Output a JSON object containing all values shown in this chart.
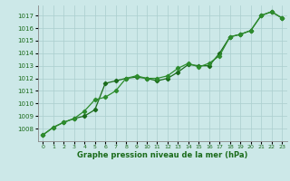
{
  "x_labels": [
    0,
    1,
    2,
    3,
    4,
    5,
    6,
    7,
    8,
    9,
    10,
    11,
    12,
    13,
    14,
    15,
    16,
    17,
    18,
    19,
    20,
    21,
    22,
    23
  ],
  "series1": [
    1007.5,
    1008.1,
    1008.5,
    1008.8,
    1009.0,
    1009.5,
    1011.6,
    1011.8,
    1012.0,
    1012.1,
    1012.0,
    1011.8,
    1012.0,
    1012.5,
    1013.1,
    1013.0,
    1013.0,
    1014.0,
    1015.3,
    1015.5,
    1015.8,
    1017.0,
    1017.3,
    1016.8
  ],
  "series2": [
    1007.5,
    1008.1,
    1008.5,
    1008.8,
    1009.4,
    1010.3,
    1010.5,
    1011.0,
    1012.0,
    1012.2,
    1012.0,
    1012.0,
    1012.2,
    1012.8,
    1013.2,
    1012.9,
    1013.2,
    1013.8,
    1015.3,
    1015.5,
    1015.8,
    1017.0,
    1017.3,
    1016.8
  ],
  "ylim": [
    1007.0,
    1017.8
  ],
  "yticks": [
    1008,
    1009,
    1010,
    1011,
    1012,
    1013,
    1014,
    1015,
    1016,
    1017
  ],
  "line_color1": "#1a6b1a",
  "line_color2": "#2d8c2d",
  "bg_color": "#cce8e8",
  "grid_color": "#aacece",
  "xlabel": "Graphe pression niveau de la mer (hPa)",
  "marker": "D",
  "markersize": 2.2,
  "linewidth": 0.9
}
